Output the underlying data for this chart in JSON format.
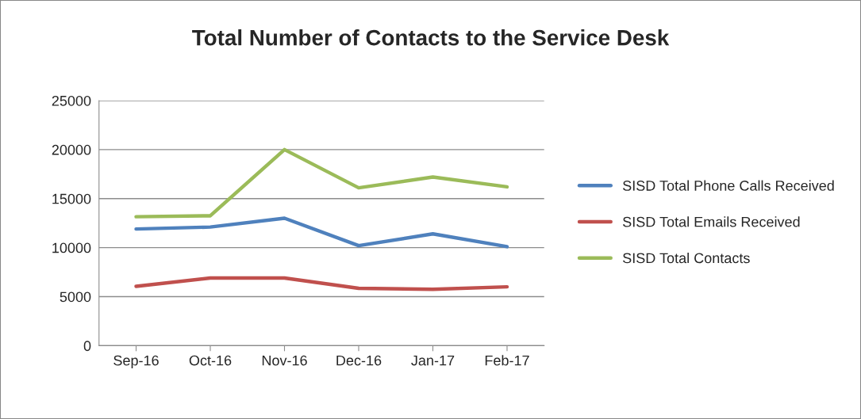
{
  "chart_data": {
    "type": "line",
    "title": "Total Number of Contacts to the Service Desk",
    "categories": [
      "Sep-16",
      "Oct-16",
      "Nov-16",
      "Dec-16",
      "Jan-17",
      "Feb-17"
    ],
    "series": [
      {
        "name": "SISD Total Phone Calls Received",
        "color": "#4f81bd",
        "values": [
          11900,
          12100,
          13000,
          10200,
          11400,
          10100
        ]
      },
      {
        "name": "SISD Total Emails Received",
        "color": "#c0504d",
        "values": [
          6050,
          6900,
          6900,
          5850,
          5750,
          6000
        ]
      },
      {
        "name": "SISD Total Contacts",
        "color": "#9bbb59",
        "values": [
          13150,
          13250,
          20000,
          16100,
          17200,
          16200
        ]
      }
    ],
    "ylim": [
      0,
      25000
    ],
    "yticks": [
      0,
      5000,
      10000,
      15000,
      20000,
      25000
    ],
    "grid": "y",
    "legend": "right",
    "marker": "none"
  }
}
